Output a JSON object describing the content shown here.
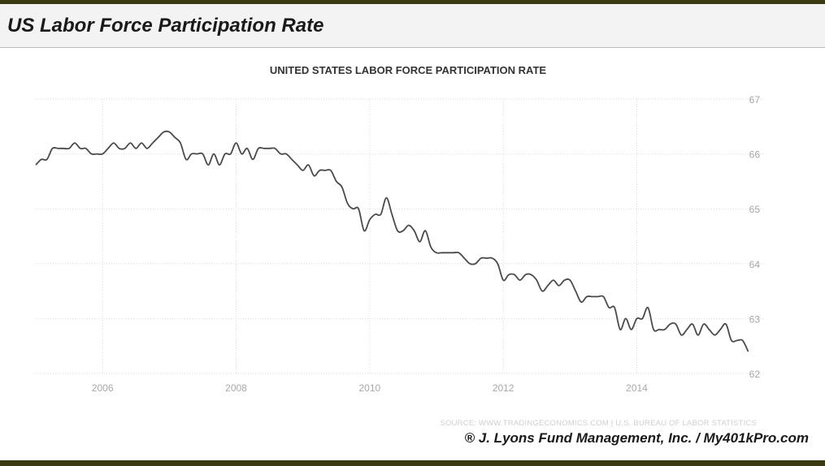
{
  "header": {
    "title": "US Labor Force Participation Rate"
  },
  "chart_data": {
    "type": "line",
    "title": "UNITED STATES LABOR FORCE PARTICIPATION RATE",
    "xlabel": "",
    "ylabel": "",
    "x_ticks": [
      "2006",
      "2008",
      "2010",
      "2012",
      "2014"
    ],
    "y_ticks": [
      62,
      63,
      64,
      65,
      66,
      67
    ],
    "ylim": [
      62,
      67
    ],
    "xlim": [
      "2005-01",
      "2015-12"
    ],
    "grid": true,
    "source": "SOURCE: WWW.TRADINGECONOMICS.COM | U.S. BUREAU OF LABOR STATISTICS",
    "series": [
      {
        "values": [
          [
            "2005-01",
            65.8
          ],
          [
            "2005-02",
            65.9
          ],
          [
            "2005-03",
            65.9
          ],
          [
            "2005-04",
            66.1
          ],
          [
            "2005-05",
            66.1
          ],
          [
            "2005-06",
            66.1
          ],
          [
            "2005-07",
            66.1
          ],
          [
            "2005-08",
            66.2
          ],
          [
            "2005-09",
            66.1
          ],
          [
            "2005-10",
            66.1
          ],
          [
            "2005-11",
            66.0
          ],
          [
            "2005-12",
            66.0
          ],
          [
            "2006-01",
            66.0
          ],
          [
            "2006-02",
            66.1
          ],
          [
            "2006-03",
            66.2
          ],
          [
            "2006-04",
            66.1
          ],
          [
            "2006-05",
            66.1
          ],
          [
            "2006-06",
            66.2
          ],
          [
            "2006-07",
            66.1
          ],
          [
            "2006-08",
            66.2
          ],
          [
            "2006-09",
            66.1
          ],
          [
            "2006-10",
            66.2
          ],
          [
            "2006-11",
            66.3
          ],
          [
            "2006-12",
            66.4
          ],
          [
            "2007-01",
            66.4
          ],
          [
            "2007-02",
            66.3
          ],
          [
            "2007-03",
            66.2
          ],
          [
            "2007-04",
            65.9
          ],
          [
            "2007-05",
            66.0
          ],
          [
            "2007-06",
            66.0
          ],
          [
            "2007-07",
            66.0
          ],
          [
            "2007-08",
            65.8
          ],
          [
            "2007-09",
            66.0
          ],
          [
            "2007-10",
            65.8
          ],
          [
            "2007-11",
            66.0
          ],
          [
            "2007-12",
            66.0
          ],
          [
            "2008-01",
            66.2
          ],
          [
            "2008-02",
            66.0
          ],
          [
            "2008-03",
            66.1
          ],
          [
            "2008-04",
            65.9
          ],
          [
            "2008-05",
            66.1
          ],
          [
            "2008-06",
            66.1
          ],
          [
            "2008-07",
            66.1
          ],
          [
            "2008-08",
            66.1
          ],
          [
            "2008-09",
            66.0
          ],
          [
            "2008-10",
            66.0
          ],
          [
            "2008-11",
            65.9
          ],
          [
            "2008-12",
            65.8
          ],
          [
            "2009-01",
            65.7
          ],
          [
            "2009-02",
            65.8
          ],
          [
            "2009-03",
            65.6
          ],
          [
            "2009-04",
            65.7
          ],
          [
            "2009-05",
            65.7
          ],
          [
            "2009-06",
            65.7
          ],
          [
            "2009-07",
            65.5
          ],
          [
            "2009-08",
            65.4
          ],
          [
            "2009-09",
            65.1
          ],
          [
            "2009-10",
            65.0
          ],
          [
            "2009-11",
            65.0
          ],
          [
            "2009-12",
            64.6
          ],
          [
            "2010-01",
            64.8
          ],
          [
            "2010-02",
            64.9
          ],
          [
            "2010-03",
            64.9
          ],
          [
            "2010-04",
            65.2
          ],
          [
            "2010-05",
            64.9
          ],
          [
            "2010-06",
            64.6
          ],
          [
            "2010-07",
            64.6
          ],
          [
            "2010-08",
            64.7
          ],
          [
            "2010-09",
            64.6
          ],
          [
            "2010-10",
            64.4
          ],
          [
            "2010-11",
            64.6
          ],
          [
            "2010-12",
            64.3
          ],
          [
            "2011-01",
            64.2
          ],
          [
            "2011-02",
            64.2
          ],
          [
            "2011-03",
            64.2
          ],
          [
            "2011-04",
            64.2
          ],
          [
            "2011-05",
            64.2
          ],
          [
            "2011-06",
            64.1
          ],
          [
            "2011-07",
            64.0
          ],
          [
            "2011-08",
            64.0
          ],
          [
            "2011-09",
            64.1
          ],
          [
            "2011-10",
            64.1
          ],
          [
            "2011-11",
            64.1
          ],
          [
            "2011-12",
            64.0
          ],
          [
            "2012-01",
            63.7
          ],
          [
            "2012-02",
            63.8
          ],
          [
            "2012-03",
            63.8
          ],
          [
            "2012-04",
            63.7
          ],
          [
            "2012-05",
            63.8
          ],
          [
            "2012-06",
            63.8
          ],
          [
            "2012-07",
            63.7
          ],
          [
            "2012-08",
            63.5
          ],
          [
            "2012-09",
            63.6
          ],
          [
            "2012-10",
            63.7
          ],
          [
            "2012-11",
            63.6
          ],
          [
            "2012-12",
            63.7
          ],
          [
            "2013-01",
            63.7
          ],
          [
            "2013-02",
            63.5
          ],
          [
            "2013-03",
            63.3
          ],
          [
            "2013-04",
            63.4
          ],
          [
            "2013-05",
            63.4
          ],
          [
            "2013-06",
            63.4
          ],
          [
            "2013-07",
            63.4
          ],
          [
            "2013-08",
            63.2
          ],
          [
            "2013-09",
            63.2
          ],
          [
            "2013-10",
            62.8
          ],
          [
            "2013-11",
            63.0
          ],
          [
            "2013-12",
            62.8
          ],
          [
            "2014-01",
            63.0
          ],
          [
            "2014-02",
            63.0
          ],
          [
            "2014-03",
            63.2
          ],
          [
            "2014-04",
            62.8
          ],
          [
            "2014-05",
            62.8
          ],
          [
            "2014-06",
            62.8
          ],
          [
            "2014-07",
            62.9
          ],
          [
            "2014-08",
            62.9
          ],
          [
            "2014-09",
            62.7
          ],
          [
            "2014-10",
            62.8
          ],
          [
            "2014-11",
            62.9
          ],
          [
            "2014-12",
            62.7
          ],
          [
            "2015-01",
            62.9
          ],
          [
            "2015-02",
            62.8
          ],
          [
            "2015-03",
            62.7
          ],
          [
            "2015-04",
            62.8
          ],
          [
            "2015-05",
            62.9
          ],
          [
            "2015-06",
            62.6
          ],
          [
            "2015-07",
            62.6
          ],
          [
            "2015-08",
            62.6
          ],
          [
            "2015-09",
            62.4
          ]
        ]
      }
    ]
  },
  "footer": {
    "copyright": "® J. Lyons Fund Management, Inc. / My401kPro.com"
  }
}
